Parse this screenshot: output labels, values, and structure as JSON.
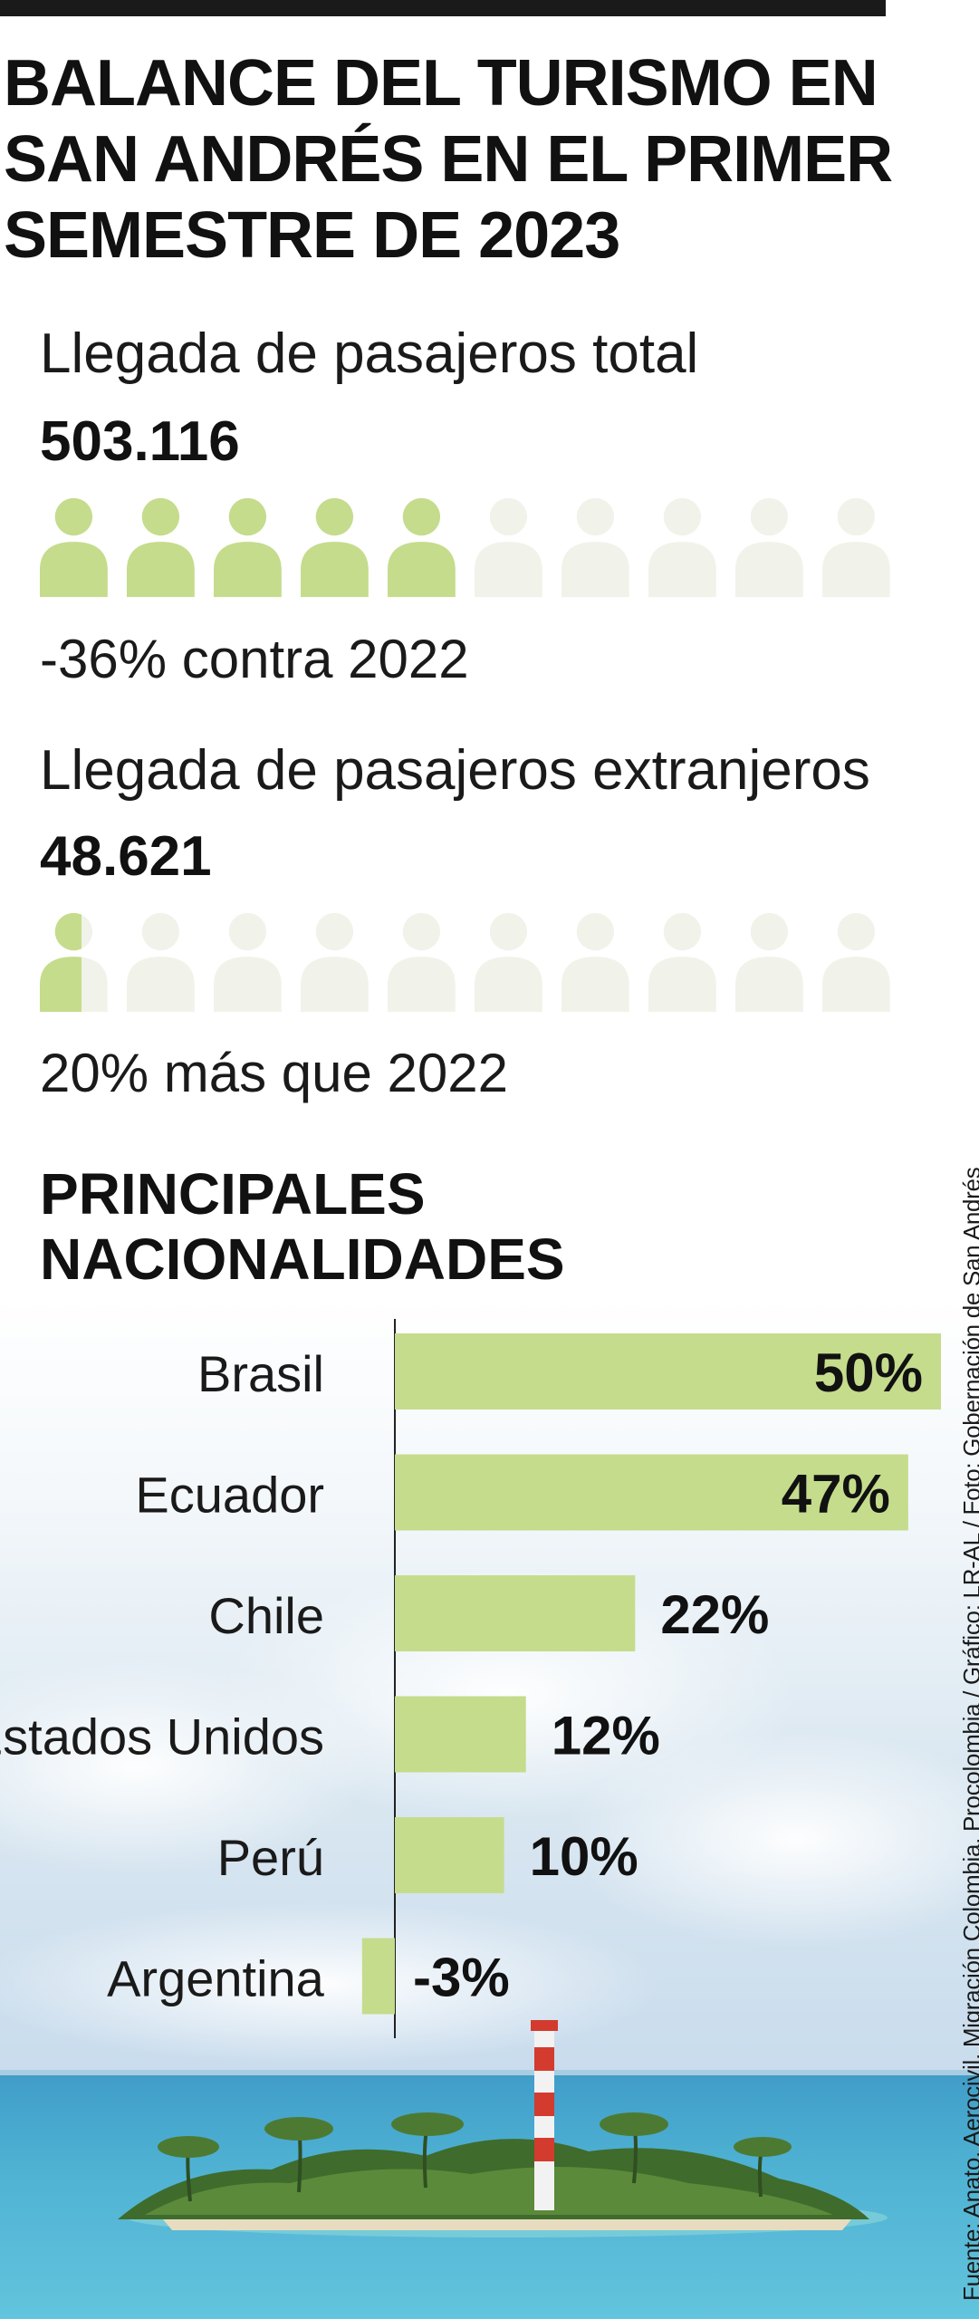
{
  "title": "BALANCE DEL TURISMO EN\nSAN ANDRÉS EN EL PRIMER\nSEMESTRE DE 2023",
  "colors": {
    "accent": "#c5dc8c",
    "muted": "#f1f3ea",
    "text": "#1a1a1a"
  },
  "total": {
    "label": "Llegada de pasajeros total",
    "value": "503.116",
    "icons_filled": 5,
    "icons_total": 10,
    "note": "-36% contra 2022"
  },
  "foreign": {
    "label": "Llegada de pasajeros extranjeros",
    "value": "48.621",
    "icons_filled": 0.5,
    "icons_total": 10,
    "note": "20% más que 2022"
  },
  "nationalities_title": "PRINCIPALES\nNACIONALIDADES",
  "chart_data": {
    "type": "bar",
    "orientation": "horizontal",
    "title": "PRINCIPALES NACIONALIDADES",
    "categories": [
      "Brasil",
      "Ecuador",
      "Chile",
      "Estados Unidos",
      "Perú",
      "Argentina"
    ],
    "values": [
      50,
      47,
      22,
      12,
      10,
      -3
    ],
    "labels": [
      "50%",
      "47%",
      "22%",
      "12%",
      "10%",
      "-3%"
    ],
    "unit": "%"
  },
  "source": "Fuente: Anato, Aerocivil, Migración Colombia, Procolombia / Gráfico: LR-AL / Foto: Gobernación de San Andrés"
}
